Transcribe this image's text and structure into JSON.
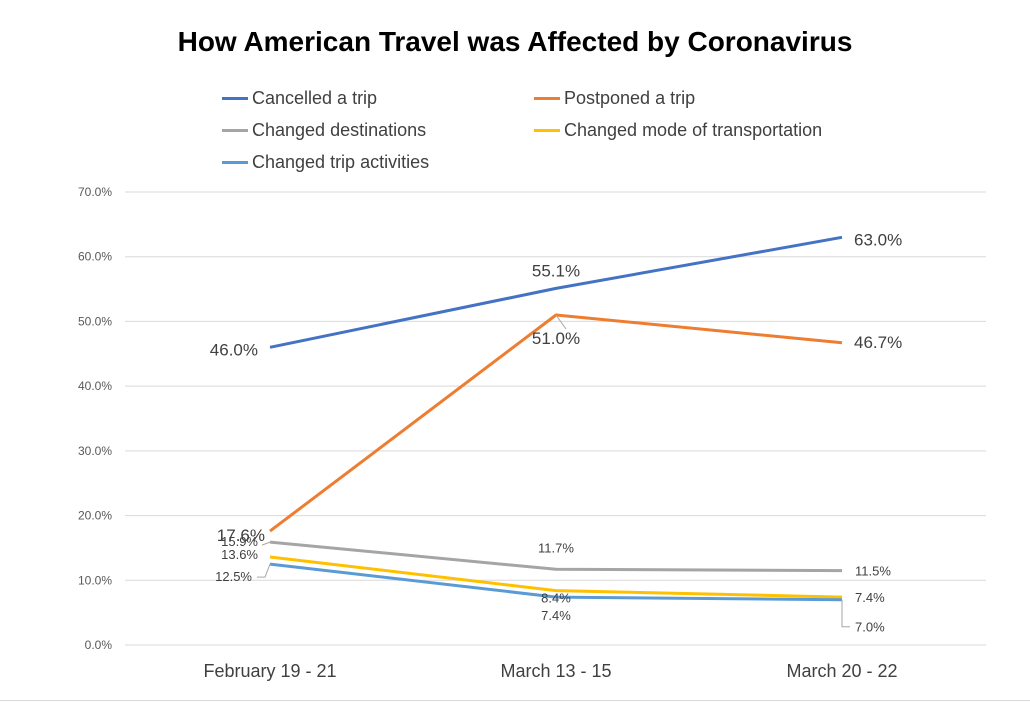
{
  "chart_data": {
    "type": "line",
    "title": "How American Travel was Affected by Coronavirus",
    "categories": [
      "February 19 - 21",
      "March 13 - 15",
      "March 20 - 22"
    ],
    "ylim": [
      0,
      70
    ],
    "y_ticks": [
      "0.0%",
      "10.0%",
      "20.0%",
      "30.0%",
      "40.0%",
      "50.0%",
      "60.0%",
      "70.0%"
    ],
    "grid": true,
    "legend_position": "top",
    "series": [
      {
        "name": "Cancelled a trip",
        "color": "#4472C4",
        "values": [
          46.0,
          55.1,
          63.0
        ],
        "labels": [
          "46.0%",
          "55.1%",
          "63.0%"
        ]
      },
      {
        "name": "Postponed a trip",
        "color": "#ED7D31",
        "values": [
          17.6,
          51.0,
          46.7
        ],
        "labels": [
          "17.6%",
          "51.0%",
          "46.7%"
        ]
      },
      {
        "name": "Changed destinations",
        "color": "#A5A5A5",
        "values": [
          15.9,
          11.7,
          11.5
        ],
        "labels": [
          "15.9%",
          "11.7%",
          "11.5%"
        ]
      },
      {
        "name": "Changed mode of transportation",
        "color": "#FFC000",
        "values": [
          13.6,
          8.4,
          7.4
        ],
        "labels": [
          "13.6%",
          "8.4%",
          "7.4%"
        ]
      },
      {
        "name": "Changed trip activities",
        "color": "#5B9BD5",
        "values": [
          12.5,
          7.4,
          7.0
        ],
        "labels": [
          "12.5%",
          "7.4%",
          "7.0%"
        ]
      }
    ]
  }
}
